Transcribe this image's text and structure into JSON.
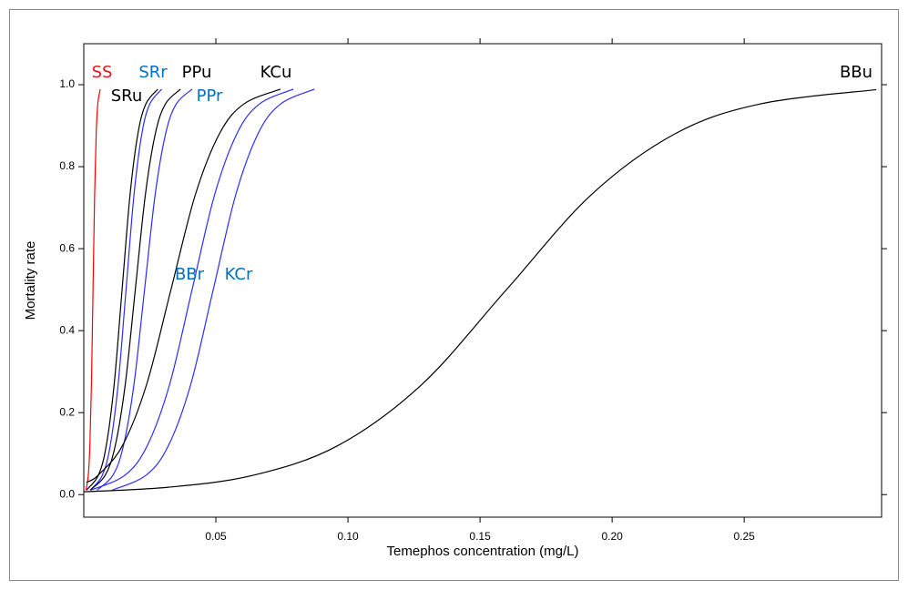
{
  "chart_data": {
    "type": "line",
    "x_label": "Temephos concentration (mg/L)",
    "y_label": "Mortality rate",
    "xlim": [
      0,
      0.302
    ],
    "ylim": [
      -0.055,
      1.1
    ],
    "xticks": [
      0.05,
      {
        "value": 0.1,
        "label": "0.10"
      },
      0.15,
      {
        "value": 0.2,
        "label": "0.20"
      },
      0.25
    ],
    "yticks": [
      {
        "value": 0,
        "label": "0.0"
      },
      0.2,
      0.4,
      0.6,
      0.8,
      {
        "value": 1,
        "label": "1.0"
      }
    ],
    "series": [
      {
        "name": "SS",
        "color": "#ff0000",
        "label_color": "#e8141b",
        "x": [
          0.0008,
          0.0017,
          0.0023,
          0.0029,
          0.0035,
          0.0041,
          0.0047,
          0.0053,
          0.0062
        ],
        "values": [
          0.011,
          0.047,
          0.119,
          0.269,
          0.5,
          0.731,
          0.881,
          0.953,
          0.989
        ]
      },
      {
        "name": "SRu",
        "color": "#000000",
        "label_color": "#000000",
        "x": [
          0.001,
          0.0055,
          0.0085,
          0.0115,
          0.0145,
          0.0175,
          0.0205,
          0.0235,
          0.028
        ],
        "values": [
          0.011,
          0.047,
          0.119,
          0.269,
          0.5,
          0.731,
          0.881,
          0.953,
          0.989
        ]
      },
      {
        "name": "SRr",
        "color": "#2b2bff",
        "label_color": "#0070c0",
        "x": [
          0.0025,
          0.007,
          0.01,
          0.013,
          0.016,
          0.019,
          0.022,
          0.025,
          0.0295
        ],
        "values": [
          0.011,
          0.047,
          0.119,
          0.269,
          0.5,
          0.731,
          0.881,
          0.953,
          0.989
        ]
      },
      {
        "name": "PPu",
        "color": "#000000",
        "label_color": "#000000",
        "x": [
          0.0024,
          0.0081,
          0.0119,
          0.0157,
          0.0195,
          0.0233,
          0.0271,
          0.0309,
          0.0366
        ],
        "values": [
          0.011,
          0.047,
          0.119,
          0.269,
          0.5,
          0.731,
          0.881,
          0.953,
          0.989
        ]
      },
      {
        "name": "PPr",
        "color": "#2b2bff",
        "label_color": "#0070c0",
        "x": [
          0.005,
          0.011,
          0.015,
          0.019,
          0.023,
          0.027,
          0.031,
          0.035,
          0.041
        ],
        "values": [
          0.011,
          0.047,
          0.119,
          0.269,
          0.5,
          0.731,
          0.881,
          0.953,
          0.989
        ]
      },
      {
        "name": "KCu",
        "color": "#000000",
        "label_color": "#000000",
        "x": [
          0.001,
          0.0054,
          0.0146,
          0.0238,
          0.033,
          0.0422,
          0.0514,
          0.0606,
          0.0744
        ],
        "values": [
          0.03,
          0.047,
          0.119,
          0.269,
          0.5,
          0.731,
          0.881,
          0.953,
          0.989
        ]
      },
      {
        "name": "BBr",
        "color": "#2b2bff",
        "label_color": "#0070c0",
        "x": [
          0.0027,
          0.0155,
          0.024,
          0.0325,
          0.041,
          0.0495,
          0.058,
          0.0665,
          0.0793
        ],
        "values": [
          0.011,
          0.047,
          0.119,
          0.269,
          0.5,
          0.731,
          0.881,
          0.953,
          0.989
        ]
      },
      {
        "name": "KCr",
        "color": "#2b2bff",
        "label_color": "#0070c0",
        "x": [
          0.0108,
          0.0235,
          0.032,
          0.0405,
          0.049,
          0.0575,
          0.066,
          0.0745,
          0.0873
        ],
        "values": [
          0.011,
          0.047,
          0.119,
          0.269,
          0.5,
          0.731,
          0.881,
          0.953,
          0.989
        ]
      },
      {
        "name": "BBu",
        "color": "#000000",
        "label_color": "#000000",
        "x": [
          0.0,
          0.032,
          0.064,
          0.096,
          0.128,
          0.16,
          0.192,
          0.224,
          0.256,
          0.3
        ],
        "values": [
          0.007,
          0.018,
          0.047,
          0.119,
          0.269,
          0.5,
          0.731,
          0.881,
          0.953,
          0.988
        ]
      }
    ]
  }
}
